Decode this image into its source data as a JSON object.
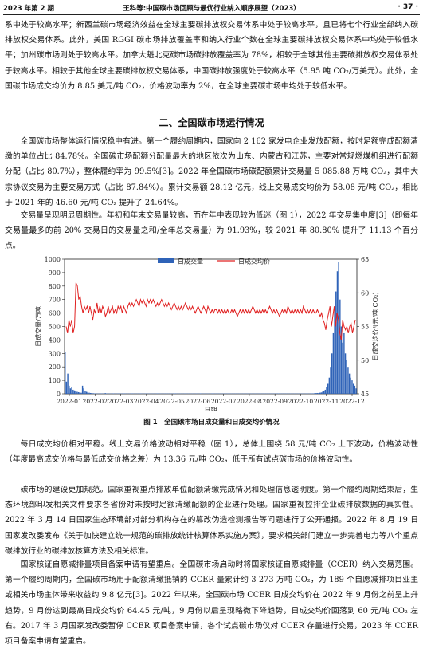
{
  "header": {
    "left": "2023 年第 2 期",
    "center": "王科等:中国碳市场回顾与最优行业纳入顺序展望（2023）",
    "page": "· 37 ·"
  },
  "paragraphs": {
    "p1": "系中处于较高水平；新西兰碳市场经济效益在全球主要碳排放权交易体系中处于较高水平，且已将七个行业全部纳入碳排放权交易体系。此外，美国 RGGI 碳市场排放覆盖率和纳入行业个数在全球主要碳排放权交易体系中均处于较低水平；加州碳市场则处于较高水平。加拿大魁北克碳市场碳排放覆盖率为 78%，相较于全球其他主要碳排放权交易体系处于较高水平。相较于其他全球主要碳排放权交易体系，中国碳排放强度处于较高水平（5.95 吨 CO₂/万美元）。此外，全国碳市场成交均价为 8.85 美元/吨 CO₂，价格波动率为 2%，在全球主要碳市场中均处于较低水平。",
    "section_title": "二、全国碳市场运行情况",
    "p2": "全国碳市场整体运行情况稳中有进。第一个履约周期内，国家向 2 162 家发电企业发放配额，按时足额完成配额清缴的单位占比 84.78%。全国碳市场配额分配量最大的地区依次为山东、内蒙古和江苏，主要对常规燃煤机组进行配额分配（占比 80.7%），整体履约率为 99.5%[3]。2022 年全国碳市场碳配额累计交易量 5 085.88 万吨 CO₂，其中大宗协议交易为主要交易方式（占比 87.84%）。累计交易额 28.12 亿元，线上交易成交均价为 58.08 元/吨 CO₂，相比于 2021 年的 46.60 元/吨 CO₂ 提升了 24.64%。",
    "p3": "交易量呈现明显周期性。年初和年末交易量较高，而在年中表现较为低迷（图 1），2022 年交易集中度[3]（即每年交易量最多的前 20% 交易日的交易量之和/全年总交易量）为 91.93%，较 2021 年 80.80% 提升了 11.13 个百分点。",
    "p4": "每日成交均价相对平稳。线上交易价格波动相对平稳（图 1），总体上围绕 58 元/吨 CO₂ 上下波动，价格波动性（年度最高成交价格与最低成交价格之差）为 13.36 元/吨 CO₂，低于所有试点碳市场的价格波动性。",
    "p5": "碳市场的建设更加规范。国家重视重点排放单位配额清缴完成情况和处理信息透明度。第一个履约周期结束后，生态环境部印发相关文件要求各省份对未按时足额清缴配额的企业进行处理。国家重视控排企业碳排放数据的真实性。2022 年 3 月 14 日国家生态环境部对部分机构存在的篡改伪造检测报告等问题进行了公开通报。2022 年 8 月 19 日国家发改委发布《关于加快建立统一规范的碳排放统计核算体系实施方案》，要求相关部门建立一步完善电力等八个重点碳排放行业的碳排放核算方法及相关标准。",
    "p6": "国家核证自愿减排量项目备案申请有望重启。全国碳市场启动时将国家核证自愿减排量（CCER）纳入交易范围。第一个履约周期内，全国碳市场用于配额清缴抵销的 CCER 量累计约 3 273 万吨 CO₂，为 189 个自愿减排项目业主或相关市场主体带来收益约 9.8 亿元[3]。2022 年以来，全国碳市场 CCER 日成交均价在 2022 年 9 月份之前呈上升趋势，9 月份达到最高日成交均价 64.45 元/吨，9 月份以后呈现略微下降趋势，日成交均价回落到 60 元/吨 CO₂ 左右。2017 年 3 月国家发改委暂停 CCER 项目备案申请，各个试点碳市场仅对 CCER 存量进行交易，2023 年 CCER 项目备案申请有望重启。"
  },
  "figure_caption": "图 1　全国碳市场日成交量和日成交均价情况",
  "colors": {
    "volume": "#2f63b8",
    "price": "#e02020",
    "axis": "#222"
  },
  "chart_data": {
    "type": "bar+line",
    "x_tick_labels": [
      "2022-01",
      "2022-02",
      "2022-03",
      "2022-04",
      "2022-05",
      "2022-06",
      "2022-07",
      "2022-08",
      "2022-09",
      "2022-10",
      "2022-11",
      "2022-12"
    ],
    "xlabel": "日期",
    "ylabel_left": "日成交量/万吨",
    "ylabel_right": "日成交均价/(元/吨 CO₂)",
    "ylim_left": [
      0,
      1000
    ],
    "yticks_left": [
      0,
      100,
      200,
      300,
      400,
      500,
      600,
      700,
      800,
      900,
      1000
    ],
    "ylim_right": [
      45,
      65
    ],
    "yticks_right": [
      45,
      50,
      55,
      60,
      65
    ],
    "legend": [
      "日成交量",
      "日成交均价"
    ],
    "legend_position": "top-center",
    "volume_series": {
      "name": "日成交量",
      "values": [
        310,
        90,
        150,
        60,
        40,
        50,
        30,
        25,
        20,
        15,
        12,
        10,
        8,
        60,
        40,
        20,
        15,
        10,
        8,
        6,
        5,
        4,
        3,
        3,
        2,
        2,
        2,
        3,
        2,
        2,
        5,
        3,
        2,
        2,
        2,
        2,
        3,
        2,
        2,
        2,
        3,
        2,
        2,
        2,
        3,
        2,
        2,
        2,
        2,
        2,
        3,
        2,
        2,
        2,
        2,
        2,
        3,
        2,
        2,
        2,
        2,
        3,
        2,
        2,
        2,
        2,
        2,
        2,
        2,
        3,
        2,
        2,
        2,
        2,
        2,
        2,
        2,
        2,
        2,
        2,
        2,
        2,
        3,
        2,
        2,
        2,
        2,
        2,
        2,
        2,
        3,
        2,
        2,
        2,
        2,
        2,
        2,
        2,
        2,
        2,
        2,
        3,
        2,
        2,
        2,
        2,
        2,
        2,
        2,
        2,
        3,
        2,
        2,
        2,
        2,
        2,
        2,
        2,
        2,
        2,
        2,
        2,
        3,
        2,
        2,
        2,
        2,
        2,
        2,
        2,
        2,
        2,
        2,
        2,
        2,
        2,
        2,
        2,
        2,
        2,
        2,
        2,
        2,
        2,
        2,
        2,
        2,
        2,
        2,
        2,
        2,
        2,
        2,
        2,
        2,
        2,
        2,
        2,
        2,
        3,
        2,
        2,
        2,
        2,
        2,
        2,
        2,
        2,
        2,
        2,
        2,
        2,
        2,
        2,
        2,
        2,
        2,
        2,
        2,
        2,
        2,
        2,
        2,
        2,
        3,
        3,
        4,
        5,
        6,
        5,
        8,
        10,
        15,
        20,
        30,
        50,
        80,
        120,
        200,
        300,
        450,
        620,
        760,
        910,
        980,
        700,
        500,
        380,
        450,
        300,
        250,
        200,
        150,
        120,
        100,
        80,
        60,
        40
      ]
    },
    "price_series": {
      "name": "日成交均价",
      "values": [
        55,
        54,
        56,
        55,
        56,
        54,
        55,
        61.5,
        61,
        59,
        59.5,
        58,
        57,
        58,
        57.5,
        58,
        57,
        58,
        57,
        56,
        57.5,
        57,
        58.5,
        57,
        58,
        57,
        58,
        57.5,
        56.5,
        57,
        58,
        57,
        57.5,
        58,
        57,
        57.5,
        57,
        58,
        57.5,
        58,
        57,
        58,
        57.5,
        57,
        58,
        58.5,
        58,
        58.5,
        58,
        58.5,
        59,
        58.5,
        58,
        59,
        58.5,
        59,
        58.5,
        58,
        59,
        58.5,
        59,
        58.5,
        59,
        58.5,
        58,
        58.5,
        58,
        58.5,
        59,
        58.5,
        58,
        58.5,
        58,
        58.5,
        58,
        57.5,
        58,
        58.5,
        58,
        57.5,
        58,
        57.5,
        58,
        57.5,
        58,
        58.5,
        58,
        57.5,
        58,
        57.5,
        58,
        57.5,
        57,
        57.5,
        58,
        57.5,
        57,
        57.5,
        58,
        57.5,
        57,
        58,
        57.5,
        57,
        57.5,
        57,
        57.5,
        57.5,
        57,
        57.5,
        57,
        57.5,
        57,
        57.5,
        57,
        57.5,
        57,
        57,
        57.5,
        57,
        57.5,
        57,
        56.5,
        57,
        57.5,
        57,
        57.5,
        57,
        57.5,
        57,
        57.5,
        57,
        57.5,
        58,
        57.5,
        57,
        57.5,
        57,
        57.5,
        57,
        57.5,
        57,
        57.5,
        57,
        57.5,
        58,
        57.5,
        57,
        57.5,
        57,
        57.5,
        57,
        56.5,
        57,
        57.5,
        57,
        57.5,
        57,
        58,
        57.5,
        57,
        57.5,
        57,
        57.5,
        57,
        57.5,
        57,
        57.5,
        57,
        58,
        57.5,
        57,
        57.5,
        57,
        57.5,
        57,
        57.5,
        57,
        57,
        57.5,
        57,
        56.5,
        57,
        56,
        55.5,
        54.5,
        56,
        57,
        58,
        55,
        56.5,
        58,
        55,
        57,
        56,
        54,
        53,
        56,
        55,
        54.5,
        55,
        54,
        55,
        55.5,
        54,
        55,
        56
      ]
    }
  }
}
